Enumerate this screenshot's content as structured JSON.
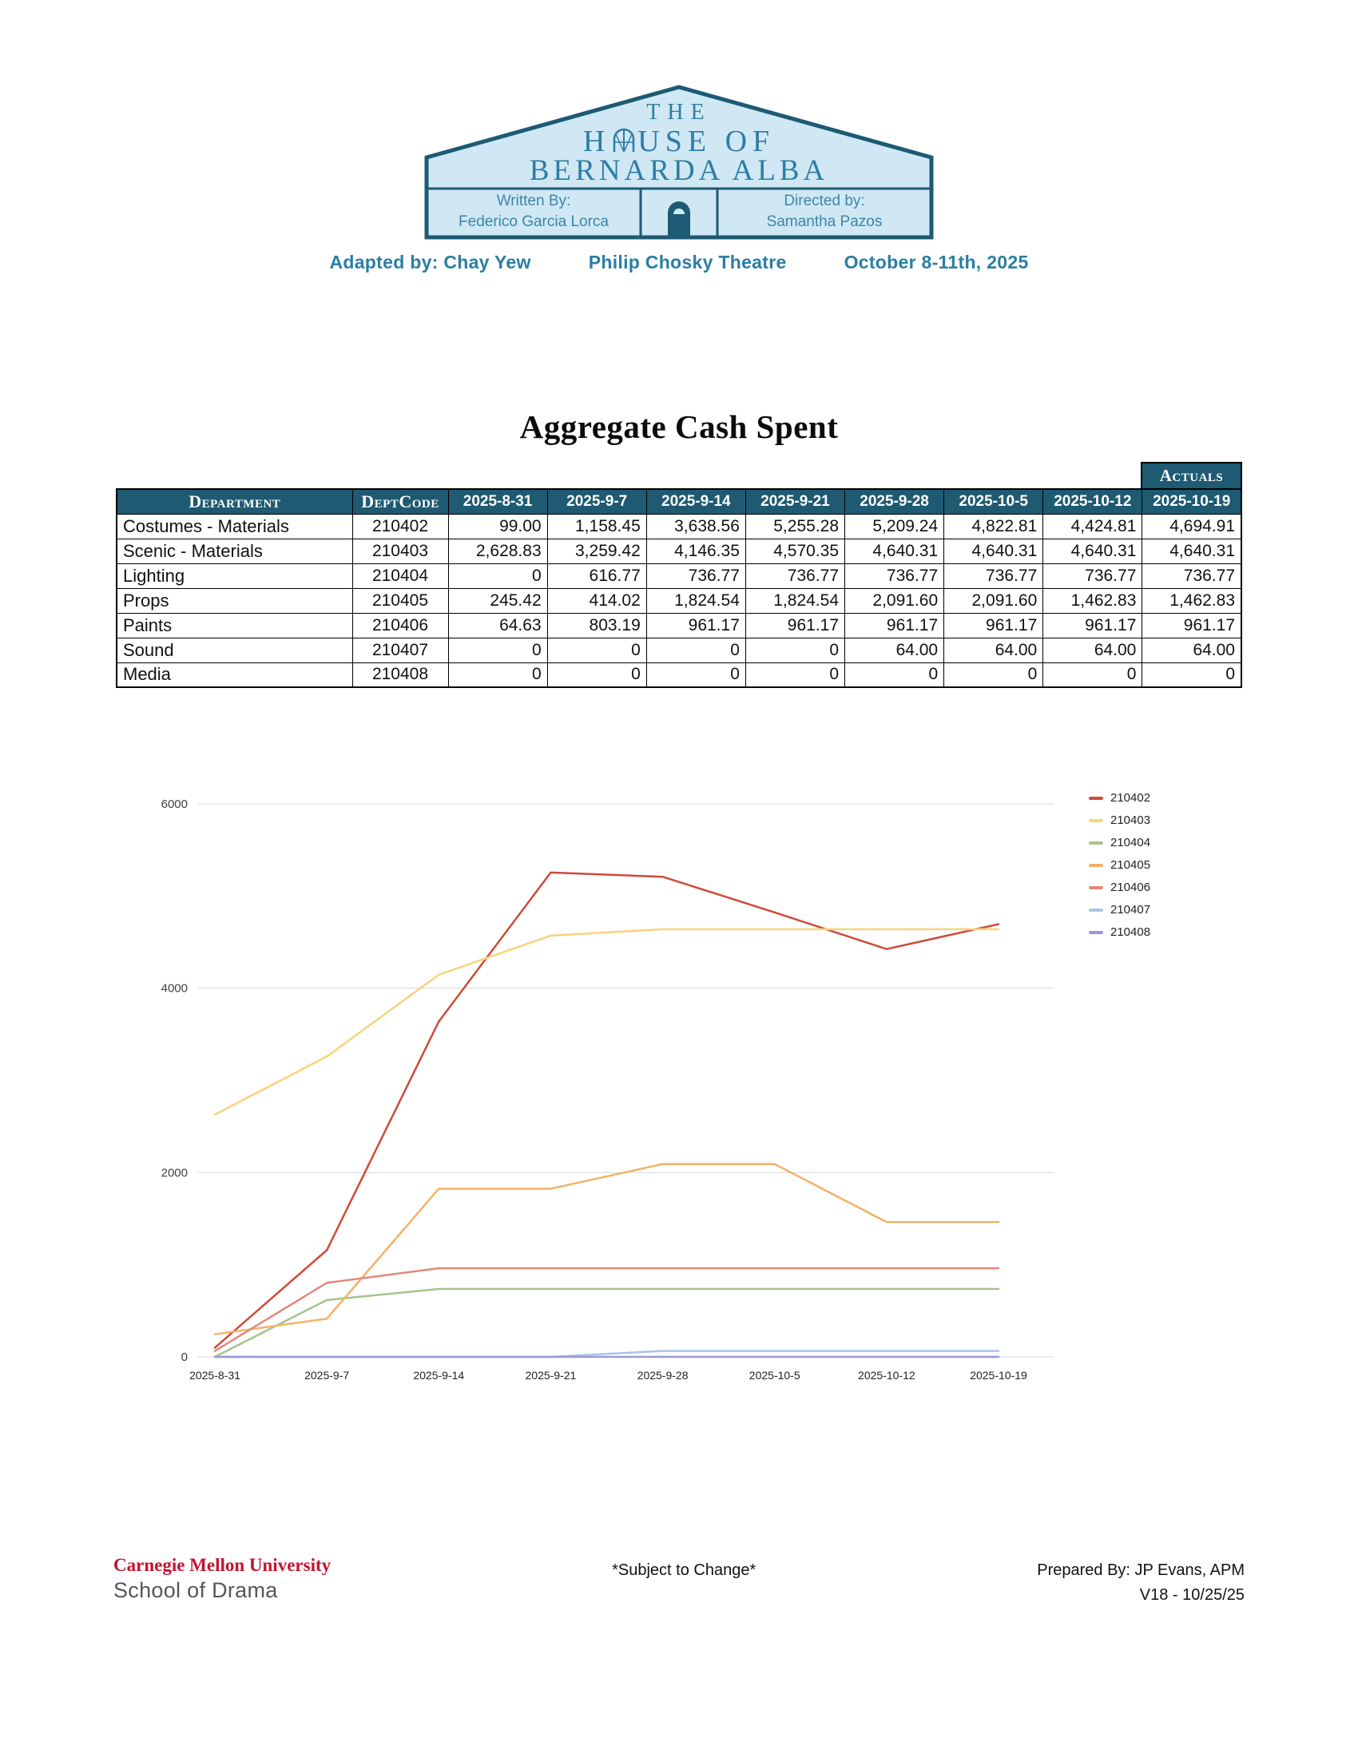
{
  "logo": {
    "the": "THE",
    "house_prefix": "H",
    "house_suffix": "USE OF",
    "bernarda": "BERNARDA ALBA",
    "written_by_label": "Written By:",
    "written_by_name": "Federico Garcia Lorca",
    "directed_by_label": "Directed by:",
    "directed_by_name": "Samantha Pazos"
  },
  "byline": {
    "adapted_by": "Adapted by: Chay Yew",
    "theatre": "Philip Chosky Theatre",
    "dates": "October 8-11th, 2025"
  },
  "title": "Aggregate Cash Spent",
  "table": {
    "actuals_label": "Actuals",
    "columns": [
      "Department",
      "DeptCode",
      "2025-8-31",
      "2025-9-7",
      "2025-9-14",
      "2025-9-21",
      "2025-9-28",
      "2025-10-5",
      "2025-10-12",
      "2025-10-19"
    ],
    "rows": [
      {
        "department": "Costumes - Materials",
        "code": "210402",
        "values": [
          "99.00",
          "1,158.45",
          "3,638.56",
          "5,255.28",
          "5,209.24",
          "4,822.81",
          "4,424.81",
          "4,694.91"
        ]
      },
      {
        "department": "Scenic - Materials",
        "code": "210403",
        "values": [
          "2,628.83",
          "3,259.42",
          "4,146.35",
          "4,570.35",
          "4,640.31",
          "4,640.31",
          "4,640.31",
          "4,640.31"
        ]
      },
      {
        "department": "Lighting",
        "code": "210404",
        "values": [
          "0",
          "616.77",
          "736.77",
          "736.77",
          "736.77",
          "736.77",
          "736.77",
          "736.77"
        ]
      },
      {
        "department": "Props",
        "code": "210405",
        "values": [
          "245.42",
          "414.02",
          "1,824.54",
          "1,824.54",
          "2,091.60",
          "2,091.60",
          "1,462.83",
          "1,462.83"
        ]
      },
      {
        "department": "Paints",
        "code": "210406",
        "values": [
          "64.63",
          "803.19",
          "961.17",
          "961.17",
          "961.17",
          "961.17",
          "961.17",
          "961.17"
        ]
      },
      {
        "department": "Sound",
        "code": "210407",
        "values": [
          "0",
          "0",
          "0",
          "0",
          "64.00",
          "64.00",
          "64.00",
          "64.00"
        ]
      },
      {
        "department": "Media",
        "code": "210408",
        "values": [
          "0",
          "0",
          "0",
          "0",
          "0",
          "0",
          "0",
          "0"
        ]
      }
    ]
  },
  "chart_data": {
    "type": "line",
    "title": "",
    "xlabel": "",
    "ylabel": "",
    "x": [
      "2025-8-31",
      "2025-9-7",
      "2025-9-14",
      "2025-9-21",
      "2025-9-28",
      "2025-10-5",
      "2025-10-12",
      "2025-10-19"
    ],
    "series": [
      {
        "name": "210402",
        "color": "#cf4a3a",
        "values": [
          99.0,
          1158.45,
          3638.56,
          5255.28,
          5209.24,
          4822.81,
          4424.81,
          4694.91
        ]
      },
      {
        "name": "210403",
        "color": "#f6d47c",
        "values": [
          2628.83,
          3259.42,
          4146.35,
          4570.35,
          4640.31,
          4640.31,
          4640.31,
          4640.31
        ]
      },
      {
        "name": "210404",
        "color": "#a6c48b",
        "values": [
          0,
          616.77,
          736.77,
          736.77,
          736.77,
          736.77,
          736.77,
          736.77
        ]
      },
      {
        "name": "210405",
        "color": "#f2b268",
        "values": [
          245.42,
          414.02,
          1824.54,
          1824.54,
          2091.6,
          2091.6,
          1462.83,
          1462.83
        ]
      },
      {
        "name": "210406",
        "color": "#e2897b",
        "values": [
          64.63,
          803.19,
          961.17,
          961.17,
          961.17,
          961.17,
          961.17,
          961.17
        ]
      },
      {
        "name": "210407",
        "color": "#a5c6e8",
        "values": [
          0,
          0,
          0,
          0,
          64.0,
          64.0,
          64.0,
          64.0
        ]
      },
      {
        "name": "210408",
        "color": "#9a9ad0",
        "values": [
          0,
          0,
          0,
          0,
          0,
          0,
          0,
          0
        ]
      }
    ],
    "ylim": [
      0,
      6000
    ],
    "yticks": [
      0,
      2000,
      4000,
      6000
    ],
    "grid": true,
    "legend_position": "right"
  },
  "footer": {
    "university": "Carnegie Mellon University",
    "school": "School of Drama",
    "note": "*Subject to Change*",
    "prepared_by": "Prepared By: JP Evans, APM",
    "version": "V18 - 10/25/25"
  },
  "colors": {
    "teal_dark": "#1e5a72",
    "teal_text": "#2e7ca3",
    "logo_fill": "#cfe8f4",
    "cmu_red": "#c41230",
    "gridline": "#d8d8d8"
  }
}
